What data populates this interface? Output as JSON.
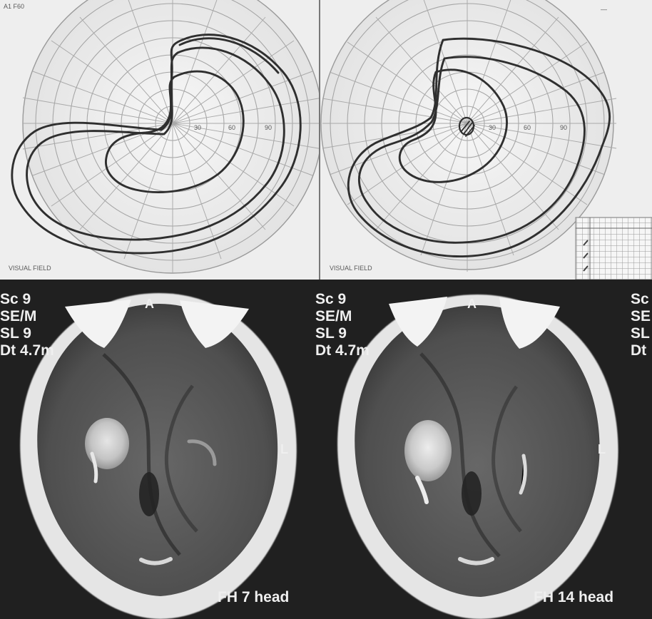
{
  "top_panels": {
    "left_corner_text": "A1 F60",
    "label_30": "30",
    "label_60": "60",
    "label_90": "90",
    "left_field_legend": "VISUAL FIELD",
    "right_field_legend": "VISUAL FIELD"
  },
  "mri": {
    "left": {
      "line1": "Sc 9",
      "line2": "SE/M",
      "line3": "SL 9",
      "line4": "Dt 4.7m",
      "marker_top": "A",
      "marker_side": "L",
      "footer": "FH 7 head"
    },
    "right": {
      "line1": "Sc 9",
      "line2": "SE/M",
      "line3": "SL 9",
      "line4": "Dt 4.7m",
      "marker_top": "A",
      "marker_side": "L",
      "footer": "FH 14 head"
    },
    "partial_right": {
      "line1": "Sc",
      "line2": "SE",
      "line3": "SL",
      "line4": "Dt"
    }
  },
  "colors": {
    "grid": "#9a9a9a",
    "contour": "#2f2f2f",
    "scan_background": "#202020",
    "brain_base": "#5d5d5d",
    "bright_signal": "#e7e7e7",
    "top_background": "#eeeeee"
  },
  "icons": {
    "left_perimetry": "visual-field-chart-icon",
    "right_perimetry": "visual-field-chart-icon",
    "left_scan": "brain-mri-icon",
    "right_scan": "brain-mri-icon"
  }
}
